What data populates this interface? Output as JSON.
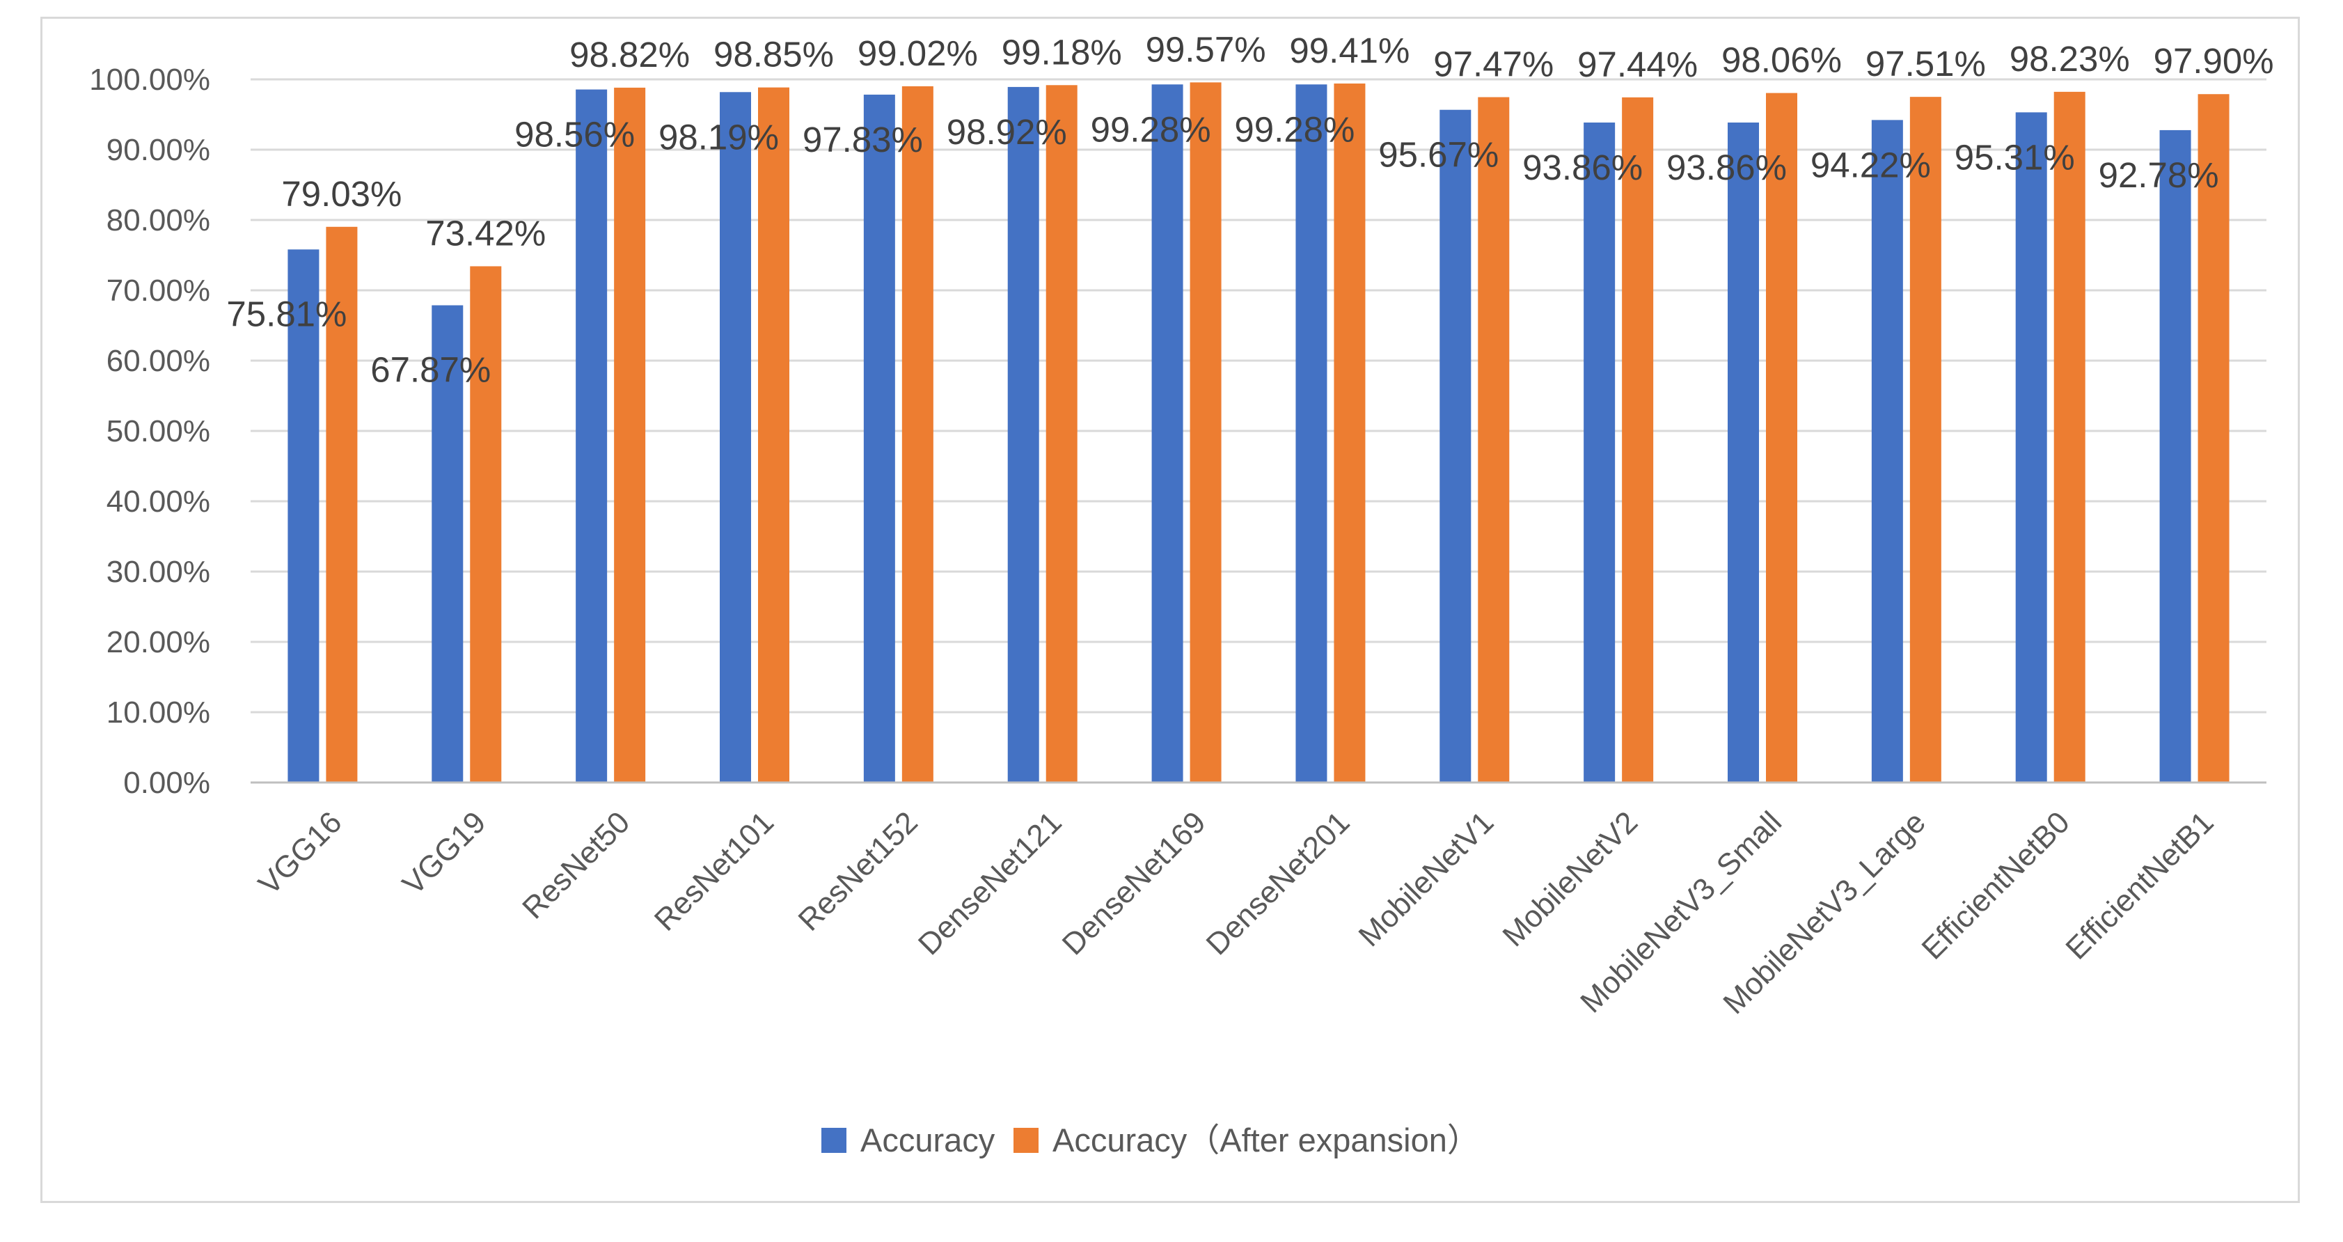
{
  "chart_data": {
    "type": "bar",
    "title": "",
    "xlabel": "",
    "ylabel": "",
    "ylim": [
      0,
      100
    ],
    "ytick_step": 10,
    "y_format": "percent_2dp",
    "grid": true,
    "legend_position": "bottom",
    "categories": [
      "VGG16",
      "VGG19",
      "ResNet50",
      "ResNet101",
      "ResNet152",
      "DenseNet121",
      "DenseNet169",
      "DenseNet201",
      "MobileNetV1",
      "MobileNetV2",
      "MobileNetV3_Small",
      "MobileNetV3_Large",
      "EfficientNetB0",
      "EfficientNetB1"
    ],
    "series": [
      {
        "name": "Accuracy",
        "color": "#4472c4",
        "values": [
          75.81,
          67.87,
          98.56,
          98.19,
          97.83,
          98.92,
          99.28,
          99.28,
          95.67,
          93.86,
          93.86,
          94.22,
          95.31,
          92.78
        ],
        "labels": [
          "75.81%",
          "67.87%",
          "98.56%",
          "98.19%",
          "97.83%",
          "98.92%",
          "99.28%",
          "99.28%",
          "95.67%",
          "93.86%",
          "93.86%",
          "94.22%",
          "95.31%",
          "92.78%"
        ]
      },
      {
        "name": "Accuracy（After expansion）",
        "color": "#ed7d31",
        "values": [
          79.03,
          73.42,
          98.82,
          98.85,
          99.02,
          99.18,
          99.57,
          99.41,
          97.47,
          97.44,
          98.06,
          97.51,
          98.23,
          97.9
        ],
        "labels": [
          "79.03%",
          "73.42%",
          "98.82%",
          "98.85%",
          "99.02%",
          "99.18%",
          "99.57%",
          "99.41%",
          "97.47%",
          "97.44%",
          "98.06%",
          "97.51%",
          "98.23%",
          "97.90%"
        ]
      }
    ],
    "y_tick_labels": [
      "0.00%",
      "10.00%",
      "20.00%",
      "30.00%",
      "40.00%",
      "50.00%",
      "60.00%",
      "70.00%",
      "80.00%",
      "90.00%",
      "100.00%"
    ]
  }
}
